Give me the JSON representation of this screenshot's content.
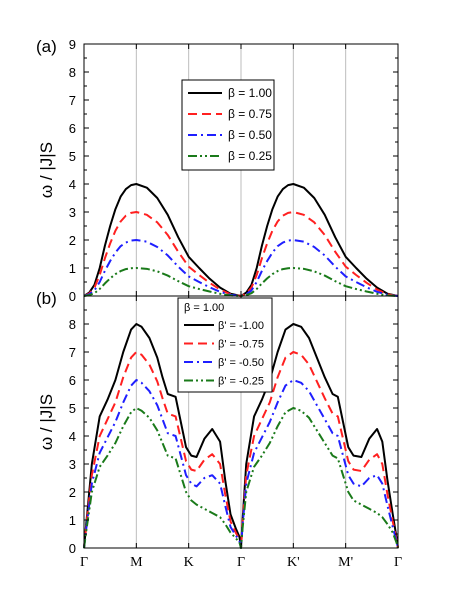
{
  "colors": {
    "black": "#000000",
    "red": "#ff2020",
    "blue": "#1f1fff",
    "green": "#1a7a1a",
    "grid": "#bdbdbd"
  },
  "shared_ylabel": "ω / |J|S",
  "x_tick_labels": [
    "Γ",
    "M",
    "K",
    "Γ",
    "K'",
    "M'",
    "Γ"
  ],
  "chart_data": [
    {
      "type": "line",
      "panel_label": "(a)",
      "ylabel": "ω / |J|S",
      "xlim": [
        0,
        6
      ],
      "ylim": [
        0,
        9
      ],
      "yticks": [
        0,
        1,
        2,
        3,
        4,
        5,
        6,
        7,
        8,
        9
      ],
      "x_ticks": [
        0,
        1,
        2,
        3,
        4,
        5,
        6
      ],
      "x_tick_labels": [
        "Γ",
        "M",
        "K",
        "Γ",
        "K'",
        "M'",
        "Γ"
      ],
      "grid": "vertical lines at high-symmetry points",
      "legend_placement": "top-center",
      "legend_title": "",
      "series": [
        {
          "name": "β = 1.00",
          "color": "#000000",
          "dash": "solid",
          "x": [
            0,
            0.1,
            0.2,
            0.3,
            0.4,
            0.5,
            0.6,
            0.7,
            0.8,
            0.9,
            1.0,
            1.2,
            1.4,
            1.6,
            1.8,
            2.0,
            2.2,
            2.4,
            2.6,
            2.8,
            3.0,
            3.1,
            3.2,
            3.3,
            3.4,
            3.5,
            3.6,
            3.7,
            3.8,
            3.9,
            4.0,
            4.2,
            4.4,
            4.6,
            4.8,
            5.0,
            5.2,
            5.4,
            5.6,
            5.8,
            6.0
          ],
          "y": [
            0,
            0.12,
            0.4,
            1.0,
            1.8,
            2.5,
            3.1,
            3.55,
            3.82,
            3.96,
            4.0,
            3.87,
            3.5,
            2.9,
            2.1,
            1.4,
            1.0,
            0.62,
            0.3,
            0.08,
            0,
            0.12,
            0.4,
            1.0,
            1.8,
            2.5,
            3.1,
            3.55,
            3.82,
            3.96,
            4.0,
            3.87,
            3.5,
            2.9,
            2.1,
            1.4,
            1.0,
            0.62,
            0.3,
            0.08,
            0
          ]
        },
        {
          "name": "β = 0.75",
          "color": "#ff2020",
          "dash": "dash",
          "x": [
            0,
            0.1,
            0.2,
            0.3,
            0.4,
            0.5,
            0.6,
            0.7,
            0.8,
            0.9,
            1.0,
            1.2,
            1.4,
            1.6,
            1.8,
            2.0,
            2.2,
            2.4,
            2.6,
            2.8,
            3.0,
            3.1,
            3.2,
            3.3,
            3.4,
            3.5,
            3.6,
            3.7,
            3.8,
            3.9,
            4.0,
            4.2,
            4.4,
            4.6,
            4.8,
            5.0,
            5.2,
            5.4,
            5.6,
            5.8,
            6.0
          ],
          "y": [
            0,
            0.09,
            0.3,
            0.75,
            1.35,
            1.88,
            2.33,
            2.66,
            2.87,
            2.97,
            3.0,
            2.9,
            2.63,
            2.18,
            1.58,
            1.05,
            0.75,
            0.47,
            0.23,
            0.06,
            0,
            0.09,
            0.3,
            0.75,
            1.35,
            1.88,
            2.33,
            2.66,
            2.87,
            2.97,
            3.0,
            2.9,
            2.63,
            2.18,
            1.58,
            1.05,
            0.75,
            0.47,
            0.23,
            0.06,
            0
          ]
        },
        {
          "name": "β = 0.50",
          "color": "#1f1fff",
          "dash": "dashdot",
          "x": [
            0,
            0.1,
            0.2,
            0.3,
            0.4,
            0.5,
            0.6,
            0.7,
            0.8,
            0.9,
            1.0,
            1.2,
            1.4,
            1.6,
            1.8,
            2.0,
            2.2,
            2.4,
            2.6,
            2.8,
            3.0,
            3.1,
            3.2,
            3.3,
            3.4,
            3.5,
            3.6,
            3.7,
            3.8,
            3.9,
            4.0,
            4.2,
            4.4,
            4.6,
            4.8,
            5.0,
            5.2,
            5.4,
            5.6,
            5.8,
            6.0
          ],
          "y": [
            0,
            0.06,
            0.2,
            0.5,
            0.9,
            1.25,
            1.55,
            1.78,
            1.91,
            1.98,
            2.0,
            1.94,
            1.75,
            1.45,
            1.05,
            0.7,
            0.5,
            0.31,
            0.15,
            0.04,
            0,
            0.06,
            0.2,
            0.5,
            0.9,
            1.25,
            1.55,
            1.78,
            1.91,
            1.98,
            2.0,
            1.94,
            1.75,
            1.45,
            1.05,
            0.7,
            0.5,
            0.31,
            0.15,
            0.04,
            0
          ]
        },
        {
          "name": "β = 0.25",
          "color": "#1a7a1a",
          "dash": "dashdotdot",
          "x": [
            0,
            0.1,
            0.2,
            0.3,
            0.4,
            0.5,
            0.6,
            0.7,
            0.8,
            0.9,
            1.0,
            1.2,
            1.4,
            1.6,
            1.8,
            2.0,
            2.2,
            2.4,
            2.6,
            2.8,
            3.0,
            3.1,
            3.2,
            3.3,
            3.4,
            3.5,
            3.6,
            3.7,
            3.8,
            3.9,
            4.0,
            4.2,
            4.4,
            4.6,
            4.8,
            5.0,
            5.2,
            5.4,
            5.6,
            5.8,
            6.0
          ],
          "y": [
            0,
            0.03,
            0.1,
            0.25,
            0.45,
            0.63,
            0.78,
            0.89,
            0.96,
            0.99,
            1.0,
            0.97,
            0.88,
            0.73,
            0.53,
            0.35,
            0.25,
            0.16,
            0.08,
            0.02,
            0,
            0.03,
            0.1,
            0.25,
            0.45,
            0.63,
            0.78,
            0.89,
            0.96,
            0.99,
            1.0,
            0.97,
            0.88,
            0.73,
            0.53,
            0.35,
            0.25,
            0.16,
            0.08,
            0.02,
            0
          ]
        }
      ]
    },
    {
      "type": "line",
      "panel_label": "(b)",
      "ylabel": "ω / |J|S",
      "xlim": [
        0,
        6
      ],
      "ylim": [
        0,
        9
      ],
      "yticks": [
        0,
        1,
        2,
        3,
        4,
        5,
        6,
        7,
        8
      ],
      "x_ticks": [
        0,
        1,
        2,
        3,
        4,
        5,
        6
      ],
      "x_tick_labels": [
        "Γ",
        "M",
        "K",
        "Γ",
        "K'",
        "M'",
        "Γ"
      ],
      "grid": "vertical lines at high-symmetry points",
      "legend_placement": "top-left",
      "legend_title": "β = 1.00",
      "series": [
        {
          "name": "β' = -1.00",
          "color": "#000000",
          "dash": "solid",
          "x": [
            0,
            0.05,
            0.15,
            0.3,
            0.45,
            0.6,
            0.75,
            0.9,
            1.0,
            1.1,
            1.25,
            1.4,
            1.5,
            1.6,
            1.75,
            1.85,
            1.95,
            2.05,
            2.15,
            2.3,
            2.45,
            2.6,
            2.7,
            2.8,
            2.9,
            2.97,
            3.0,
            3.03,
            3.1,
            3.25,
            3.4,
            3.55,
            3.7,
            3.85,
            4.0,
            4.15,
            4.3,
            4.45,
            4.6,
            4.75,
            4.85,
            4.95,
            5.05,
            5.15,
            5.3,
            5.45,
            5.6,
            5.7,
            5.8,
            5.9,
            5.97,
            6.0
          ],
          "y": [
            0,
            1.0,
            3.0,
            4.7,
            5.3,
            6.0,
            7.0,
            7.8,
            8.0,
            7.9,
            7.5,
            6.8,
            6.1,
            5.5,
            5.4,
            4.5,
            3.6,
            3.3,
            3.25,
            3.9,
            4.25,
            3.8,
            2.4,
            1.2,
            0.7,
            0.4,
            0,
            1.0,
            3.0,
            4.7,
            5.3,
            6.0,
            7.0,
            7.8,
            8.0,
            7.9,
            7.5,
            6.8,
            6.1,
            5.5,
            5.4,
            4.5,
            3.6,
            3.3,
            3.25,
            3.9,
            4.25,
            3.8,
            2.4,
            1.2,
            0.4,
            0
          ]
        },
        {
          "name": "β' = -0.75",
          "color": "#ff2020",
          "dash": "dash",
          "x": [
            0,
            0.05,
            0.15,
            0.3,
            0.45,
            0.6,
            0.75,
            0.9,
            1.0,
            1.1,
            1.25,
            1.4,
            1.5,
            1.6,
            1.75,
            1.85,
            1.95,
            2.05,
            2.15,
            2.3,
            2.45,
            2.6,
            2.7,
            2.8,
            2.9,
            2.97,
            3.0,
            3.03,
            3.1,
            3.25,
            3.4,
            3.55,
            3.7,
            3.85,
            4.0,
            4.15,
            4.3,
            4.45,
            4.6,
            4.75,
            4.85,
            4.95,
            5.05,
            5.15,
            5.3,
            5.45,
            5.6,
            5.7,
            5.8,
            5.9,
            5.97,
            6.0
          ],
          "y": [
            0,
            0.9,
            2.6,
            4.0,
            4.6,
            5.2,
            6.1,
            6.8,
            7.0,
            6.9,
            6.55,
            5.95,
            5.35,
            4.8,
            4.7,
            3.9,
            3.1,
            2.8,
            2.75,
            3.15,
            3.35,
            3.0,
            1.9,
            0.95,
            0.55,
            0.3,
            0,
            0.9,
            2.6,
            4.0,
            4.6,
            5.2,
            6.1,
            6.8,
            7.0,
            6.9,
            6.55,
            5.95,
            5.35,
            4.8,
            4.7,
            3.9,
            3.1,
            2.8,
            2.75,
            3.15,
            3.35,
            3.0,
            1.9,
            0.95,
            0.3,
            0
          ]
        },
        {
          "name": "β' = -0.50",
          "color": "#1f1fff",
          "dash": "dashdot",
          "x": [
            0,
            0.05,
            0.15,
            0.3,
            0.45,
            0.6,
            0.75,
            0.9,
            1.0,
            1.1,
            1.25,
            1.4,
            1.5,
            1.6,
            1.75,
            1.85,
            1.95,
            2.05,
            2.15,
            2.3,
            2.45,
            2.6,
            2.7,
            2.8,
            2.9,
            2.97,
            3.0,
            3.03,
            3.1,
            3.25,
            3.4,
            3.55,
            3.7,
            3.85,
            4.0,
            4.15,
            4.3,
            4.45,
            4.6,
            4.75,
            4.85,
            4.95,
            5.05,
            5.15,
            5.3,
            5.45,
            5.6,
            5.7,
            5.8,
            5.9,
            5.97,
            6.0
          ],
          "y": [
            0,
            0.8,
            2.3,
            3.4,
            3.95,
            4.5,
            5.2,
            5.8,
            6.0,
            5.9,
            5.6,
            5.1,
            4.6,
            4.1,
            4.0,
            3.3,
            2.6,
            2.3,
            2.2,
            2.5,
            2.6,
            2.3,
            1.5,
            0.75,
            0.45,
            0.25,
            0,
            0.8,
            2.3,
            3.4,
            3.95,
            4.5,
            5.2,
            5.8,
            6.0,
            5.9,
            5.6,
            5.1,
            4.6,
            4.1,
            4.0,
            3.3,
            2.6,
            2.3,
            2.2,
            2.5,
            2.6,
            2.3,
            1.5,
            0.75,
            0.25,
            0
          ]
        },
        {
          "name": "β' = -0.25",
          "color": "#1a7a1a",
          "dash": "dashdotdot",
          "x": [
            0,
            0.05,
            0.15,
            0.3,
            0.45,
            0.6,
            0.75,
            0.9,
            1.0,
            1.1,
            1.25,
            1.4,
            1.5,
            1.6,
            1.75,
            1.85,
            1.95,
            2.05,
            2.15,
            2.3,
            2.45,
            2.6,
            2.7,
            2.8,
            2.9,
            2.97,
            3.0,
            3.03,
            3.1,
            3.25,
            3.4,
            3.55,
            3.7,
            3.85,
            4.0,
            4.15,
            4.3,
            4.45,
            4.6,
            4.75,
            4.85,
            4.95,
            5.05,
            5.15,
            5.3,
            5.45,
            5.6,
            5.7,
            5.8,
            5.9,
            5.97,
            6.0
          ],
          "y": [
            0,
            0.7,
            2.0,
            2.9,
            3.3,
            3.75,
            4.35,
            4.85,
            5.0,
            4.9,
            4.65,
            4.2,
            3.75,
            3.3,
            3.2,
            2.6,
            2.0,
            1.7,
            1.55,
            1.4,
            1.25,
            1.1,
            0.85,
            0.55,
            0.35,
            0.2,
            0,
            0.7,
            2.0,
            2.9,
            3.3,
            3.75,
            4.35,
            4.85,
            5.0,
            4.9,
            4.65,
            4.2,
            3.75,
            3.3,
            3.2,
            2.6,
            2.0,
            1.7,
            1.55,
            1.4,
            1.25,
            1.1,
            0.85,
            0.55,
            0.2,
            0
          ]
        }
      ]
    }
  ]
}
